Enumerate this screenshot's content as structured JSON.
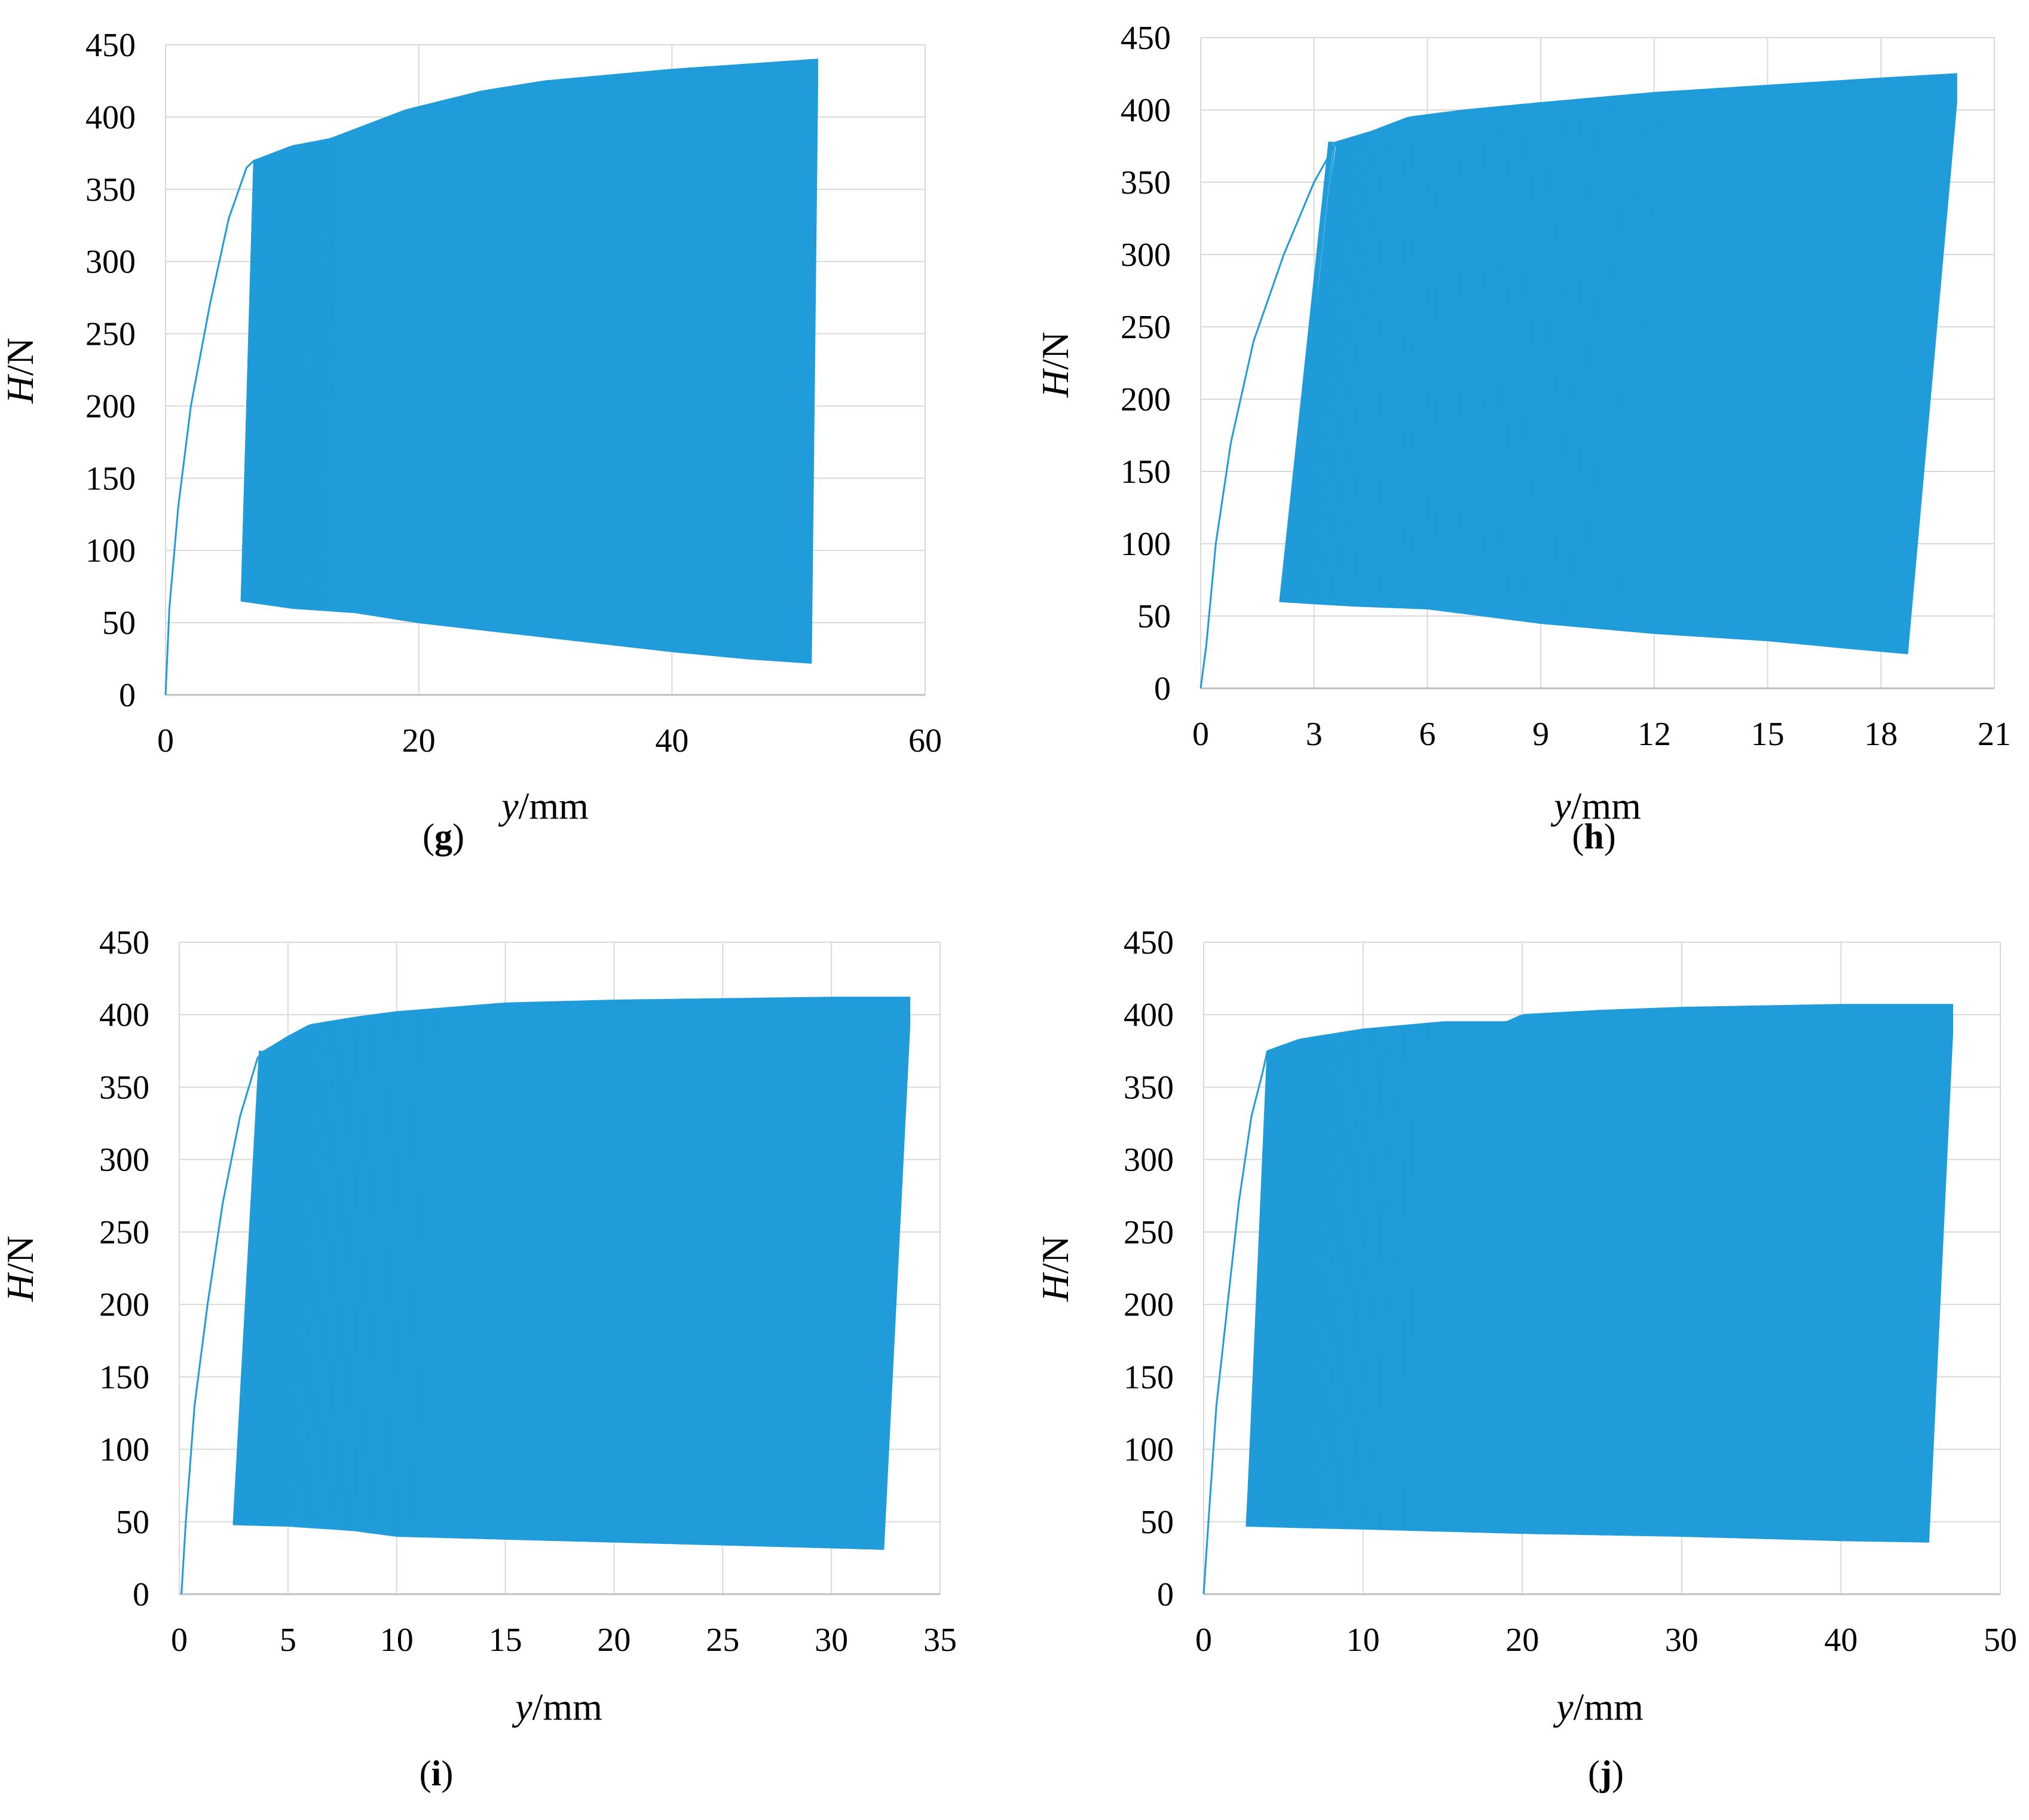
{
  "colors": {
    "series": "#1f9cd9",
    "grid": "#d9d9d9",
    "axis": "#bfbfbf"
  },
  "chart_data": [
    {
      "id": "g",
      "type": "line",
      "caption_open": "(",
      "caption_letter": "g",
      "caption_close": ")",
      "ylabel_italic": "H",
      "ylabel_unit": "/N",
      "xlabel_italic": "y",
      "xlabel_unit": "/mm",
      "xlim": [
        0,
        60
      ],
      "ylim": [
        0,
        450
      ],
      "xticks": [
        0,
        20,
        40,
        60
      ],
      "yticks": [
        0,
        50,
        100,
        150,
        200,
        250,
        300,
        350,
        400,
        450
      ],
      "series": [
        {
          "initial": [
            [
              0,
              0
            ],
            [
              0.3,
              60
            ],
            [
              1.0,
              130
            ],
            [
              2.0,
              200
            ],
            [
              3.5,
              270
            ],
            [
              5.0,
              330
            ],
            [
              6.4,
              365
            ],
            [
              7.0,
              370
            ]
          ],
          "cycles_start": 6.0,
          "cycles_end": 51.5,
          "upper": [
            [
              7.0,
              370
            ],
            [
              10,
              380
            ],
            [
              13,
              385
            ],
            [
              16,
              395
            ],
            [
              19,
              405
            ],
            [
              25,
              418
            ],
            [
              30,
              425
            ],
            [
              40,
              433
            ],
            [
              45,
              436
            ],
            [
              51.5,
              440
            ]
          ],
          "lower": [
            [
              6.0,
              65
            ],
            [
              10,
              60
            ],
            [
              15,
              57
            ],
            [
              20,
              50
            ],
            [
              30,
              40
            ],
            [
              40,
              30
            ],
            [
              46,
              25
            ],
            [
              51.0,
              22
            ]
          ],
          "drift": 1.0
        }
      ]
    },
    {
      "id": "h",
      "type": "line",
      "caption_open": "(",
      "caption_letter": "h",
      "caption_close": ")",
      "ylabel_italic": "H",
      "ylabel_unit": "/N",
      "xlabel_italic": "y",
      "xlabel_unit": "/mm",
      "xlim": [
        0,
        21
      ],
      "ylim": [
        0,
        450
      ],
      "xticks": [
        0,
        3,
        6,
        9,
        12,
        15,
        18,
        21
      ],
      "yticks": [
        0,
        50,
        100,
        150,
        200,
        250,
        300,
        350,
        400,
        450
      ],
      "series": [
        {
          "initial": [
            [
              0,
              0
            ],
            [
              0.15,
              30
            ],
            [
              0.4,
              100
            ],
            [
              0.8,
              170
            ],
            [
              1.4,
              240
            ],
            [
              2.2,
              300
            ],
            [
              3.0,
              350
            ],
            [
              3.6,
              378
            ]
          ],
          "cycles_start": 2.1,
          "cycles_end": 20.0,
          "upper": [
            [
              3.6,
              378
            ],
            [
              4.5,
              385
            ],
            [
              5.5,
              395
            ],
            [
              7,
              400
            ],
            [
              9,
              405
            ],
            [
              12,
              412
            ],
            [
              15,
              417
            ],
            [
              18,
              422
            ],
            [
              20.0,
              425
            ]
          ],
          "lower": [
            [
              2.1,
              60
            ],
            [
              4,
              57
            ],
            [
              6,
              55
            ],
            [
              9,
              45
            ],
            [
              12,
              38
            ],
            [
              15,
              33
            ],
            [
              17,
              28
            ],
            [
              18.7,
              24
            ]
          ],
          "drift": 1.3
        }
      ]
    },
    {
      "id": "i",
      "type": "line",
      "caption_open": "(",
      "caption_letter": "i",
      "caption_close": ")",
      "ylabel_italic": "H",
      "ylabel_unit": "/N",
      "xlabel_italic": "y",
      "xlabel_unit": "/mm",
      "xlim": [
        0,
        35
      ],
      "ylim": [
        0,
        450
      ],
      "xticks": [
        0,
        5,
        10,
        15,
        20,
        25,
        30,
        35
      ],
      "yticks": [
        0,
        50,
        100,
        150,
        200,
        250,
        300,
        350,
        400,
        450
      ],
      "series": [
        {
          "initial": [
            [
              0.1,
              0
            ],
            [
              0.3,
              50
            ],
            [
              0.7,
              130
            ],
            [
              1.3,
              200
            ],
            [
              2.0,
              270
            ],
            [
              2.8,
              330
            ],
            [
              3.6,
              370
            ],
            [
              3.9,
              375
            ]
          ],
          "cycles_start": 2.5,
          "cycles_end": 33.6,
          "upper": [
            [
              3.9,
              375
            ],
            [
              5,
              385
            ],
            [
              6,
              393
            ],
            [
              8,
              398
            ],
            [
              10,
              402
            ],
            [
              15,
              408
            ],
            [
              20,
              410
            ],
            [
              25,
              411
            ],
            [
              30,
              412
            ],
            [
              33.6,
              412
            ]
          ],
          "lower": [
            [
              2.5,
              48
            ],
            [
              5,
              47
            ],
            [
              8,
              44
            ],
            [
              10,
              40
            ],
            [
              15,
              38
            ],
            [
              20,
              36
            ],
            [
              25,
              34
            ],
            [
              30,
              32
            ],
            [
              32.4,
              31
            ]
          ],
          "drift": 1.2
        }
      ]
    },
    {
      "id": "j",
      "type": "line",
      "caption_open": "(",
      "caption_letter": "j",
      "caption_close": ")",
      "ylabel_italic": "H",
      "ylabel_unit": "/N",
      "xlabel_italic": "y",
      "xlabel_unit": "/mm",
      "xlim": [
        0,
        50
      ],
      "ylim": [
        0,
        450
      ],
      "xticks": [
        0,
        10,
        20,
        30,
        40,
        50
      ],
      "yticks": [
        0,
        50,
        100,
        150,
        200,
        250,
        300,
        350,
        400,
        450
      ],
      "series": [
        {
          "initial": [
            [
              0,
              0
            ],
            [
              0.3,
              50
            ],
            [
              0.8,
              130
            ],
            [
              1.5,
              200
            ],
            [
              2.2,
              270
            ],
            [
              3.0,
              330
            ],
            [
              3.7,
              360
            ],
            [
              4.0,
              375
            ]
          ],
          "cycles_start": 2.7,
          "cycles_end": 47.0,
          "upper": [
            [
              4.0,
              375
            ],
            [
              6,
              383
            ],
            [
              10,
              390
            ],
            [
              15,
              395
            ],
            [
              19,
              395
            ],
            [
              20,
              400
            ],
            [
              25,
              403
            ],
            [
              30,
              405
            ],
            [
              40,
              407
            ],
            [
              47.0,
              407
            ]
          ],
          "lower": [
            [
              2.7,
              47
            ],
            [
              6,
              46
            ],
            [
              10,
              45
            ],
            [
              20,
              42
            ],
            [
              30,
              40
            ],
            [
              40,
              37
            ],
            [
              45.5,
              36
            ]
          ],
          "drift": 1.5
        }
      ]
    }
  ]
}
